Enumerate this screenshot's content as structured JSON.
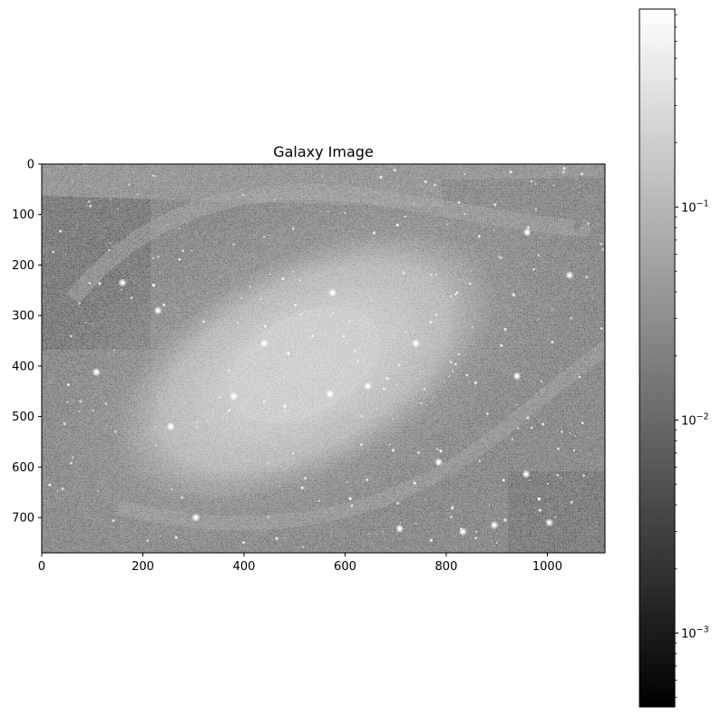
{
  "chart_data": {
    "type": "heatmap",
    "title": "Galaxy Image",
    "xlabel": "",
    "ylabel": "",
    "colormap": "gray",
    "image_shape": [
      770,
      1114
    ],
    "xlim": [
      0,
      1114
    ],
    "ylim": [
      770,
      0
    ],
    "x_ticks": [
      {
        "value": 0,
        "label": "0"
      },
      {
        "value": 200,
        "label": "200"
      },
      {
        "value": 400,
        "label": "400"
      },
      {
        "value": 600,
        "label": "600"
      },
      {
        "value": 800,
        "label": "800"
      },
      {
        "value": 1000,
        "label": "1000"
      }
    ],
    "y_ticks": [
      {
        "value": 0,
        "label": "0"
      },
      {
        "value": 100,
        "label": "100"
      },
      {
        "value": 200,
        "label": "200"
      },
      {
        "value": 300,
        "label": "300"
      },
      {
        "value": 400,
        "label": "400"
      },
      {
        "value": 500,
        "label": "500"
      },
      {
        "value": 600,
        "label": "600"
      },
      {
        "value": 700,
        "label": "700"
      }
    ],
    "colorbar": {
      "scale": "log",
      "range": [
        0.00045,
        0.85
      ],
      "major_ticks": [
        {
          "value": 0.001,
          "label": "10",
          "exponent": "−3"
        },
        {
          "value": 0.01,
          "label": "10",
          "exponent": "−2"
        },
        {
          "value": 0.1,
          "label": "10",
          "exponent": "−1"
        }
      ]
    },
    "galaxy": {
      "center": [
        520,
        400
      ],
      "tilt_degrees": -28
    },
    "bright_sources": [
      [
        380,
        460
      ],
      [
        645,
        440
      ],
      [
        108,
        412
      ],
      [
        833,
        728
      ],
      [
        958,
        614
      ],
      [
        708,
        722
      ],
      [
        785,
        590
      ],
      [
        1044,
        220
      ],
      [
        1004,
        710
      ],
      [
        575,
        255
      ],
      [
        895,
        715
      ],
      [
        940,
        420
      ],
      [
        160,
        235
      ],
      [
        440,
        355
      ],
      [
        230,
        290
      ],
      [
        305,
        700
      ],
      [
        960,
        135
      ],
      [
        570,
        455
      ],
      [
        740,
        355
      ],
      [
        255,
        520
      ]
    ]
  }
}
